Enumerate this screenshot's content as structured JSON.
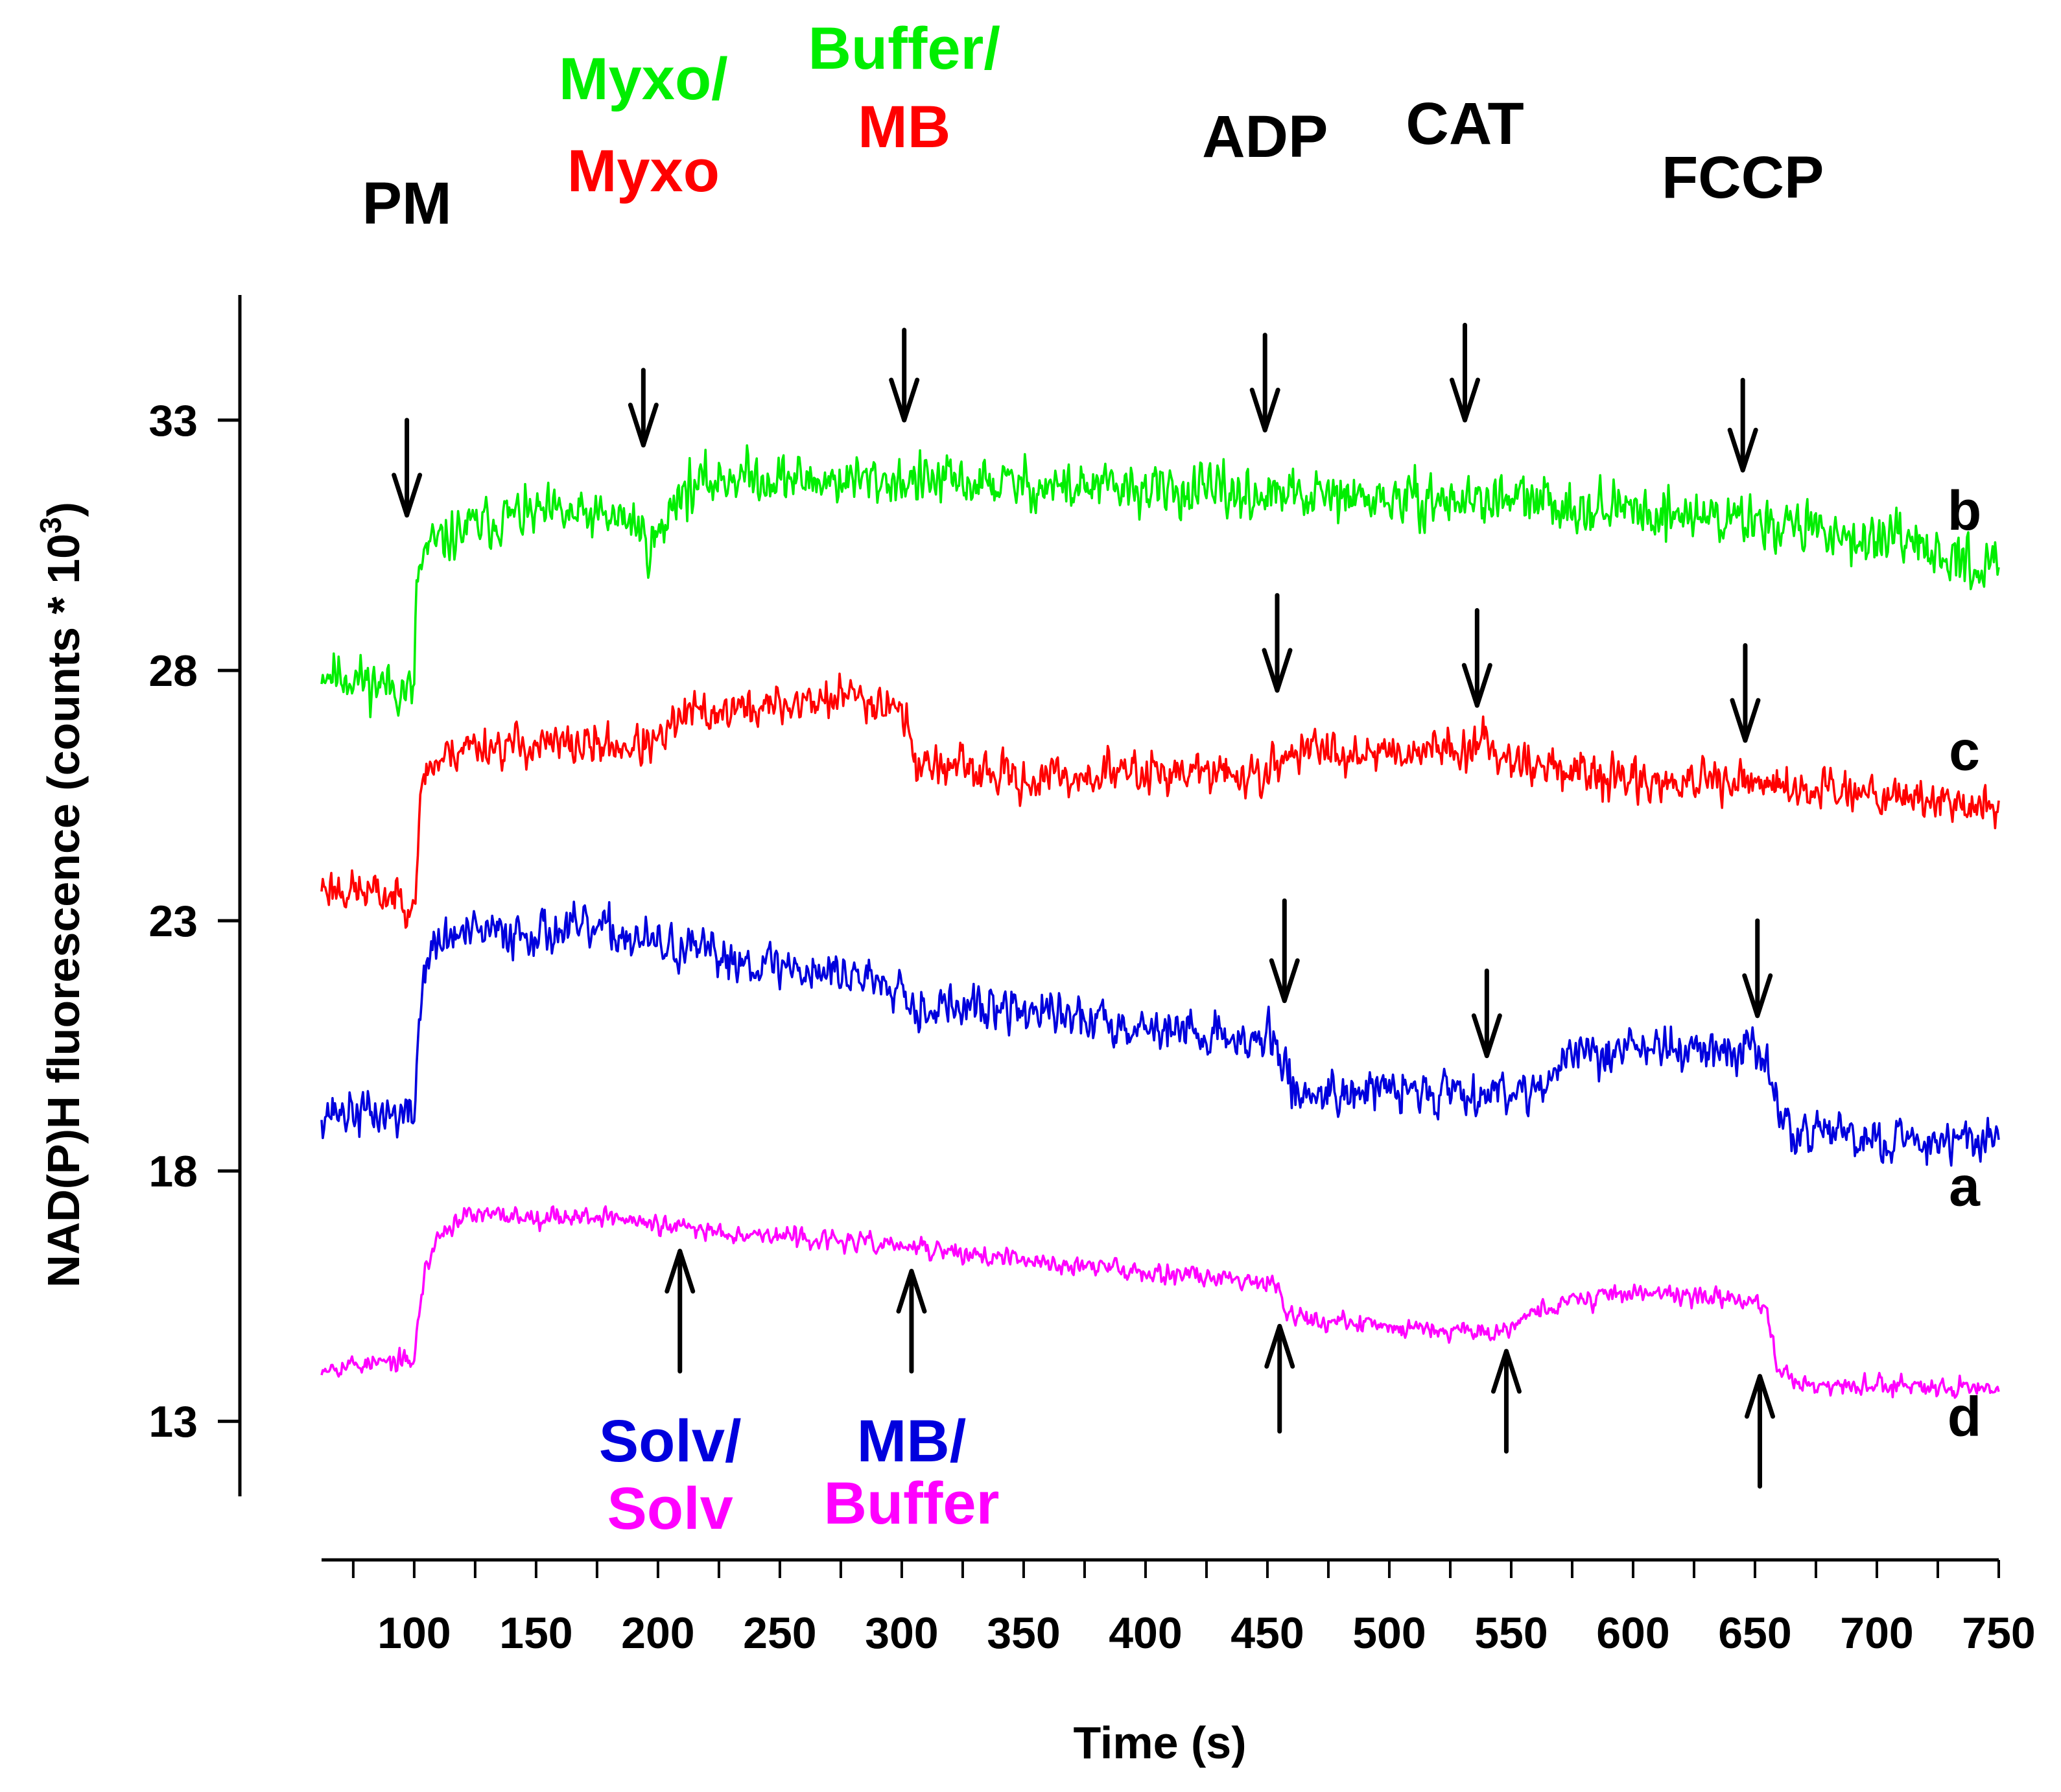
{
  "chart_data": {
    "type": "line",
    "xlabel": "Time (s)",
    "ylabel": "NAD(P)H fluorescence (counts * 10",
    "ylabel_superscript": "3",
    "ylabel_suffix": ")",
    "xlim": [
      62,
      750
    ],
    "ylim": [
      11.5,
      35.5
    ],
    "x_ticks": [
      100,
      150,
      200,
      250,
      300,
      350,
      400,
      450,
      500,
      550,
      600,
      650,
      700,
      750
    ],
    "y_ticks": [
      13,
      18,
      23,
      28,
      33
    ],
    "series": [
      {
        "name": "b",
        "color": "#00ee00",
        "noise": 0.33,
        "seed": 11,
        "points": [
          [
            62,
            28.0
          ],
          [
            98,
            27.6
          ],
          [
            100,
            27.5
          ],
          [
            101,
            29.8
          ],
          [
            105,
            30.4
          ],
          [
            120,
            30.8
          ],
          [
            140,
            31.1
          ],
          [
            160,
            31.1
          ],
          [
            190,
            31.0
          ],
          [
            196,
            30.5
          ],
          [
            203,
            30.8
          ],
          [
            206,
            31.5
          ],
          [
            230,
            31.9
          ],
          [
            260,
            31.8
          ],
          [
            300,
            31.8
          ],
          [
            350,
            31.7
          ],
          [
            400,
            31.6
          ],
          [
            450,
            31.5
          ],
          [
            500,
            31.4
          ],
          [
            550,
            31.4
          ],
          [
            600,
            31.2
          ],
          [
            650,
            31.0
          ],
          [
            700,
            30.6
          ],
          [
            750,
            30.0
          ]
        ]
      },
      {
        "name": "c",
        "color": "#ff0000",
        "noise": 0.28,
        "seed": 23,
        "points": [
          [
            62,
            23.7
          ],
          [
            100,
            23.4
          ],
          [
            102,
            24.8
          ],
          [
            104,
            26.0
          ],
          [
            120,
            26.5
          ],
          [
            150,
            26.5
          ],
          [
            200,
            26.5
          ],
          [
            210,
            27.1
          ],
          [
            250,
            27.3
          ],
          [
            280,
            27.5
          ],
          [
            300,
            27.3
          ],
          [
            305,
            26.2
          ],
          [
            350,
            25.8
          ],
          [
            400,
            26.0
          ],
          [
            450,
            25.9
          ],
          [
            460,
            26.4
          ],
          [
            500,
            26.4
          ],
          [
            540,
            26.5
          ],
          [
            560,
            26.1
          ],
          [
            600,
            25.8
          ],
          [
            650,
            25.7
          ],
          [
            700,
            25.6
          ],
          [
            750,
            25.2
          ]
        ]
      },
      {
        "name": "a",
        "color": "#0000dd",
        "noise": 0.3,
        "seed": 37,
        "points": [
          [
            62,
            19.2
          ],
          [
            100,
            19.1
          ],
          [
            102,
            21.0
          ],
          [
            105,
            22.3
          ],
          [
            115,
            22.7
          ],
          [
            150,
            22.8
          ],
          [
            180,
            22.8
          ],
          [
            200,
            22.5
          ],
          [
            250,
            22.1
          ],
          [
            300,
            21.8
          ],
          [
            304,
            21.3
          ],
          [
            350,
            21.2
          ],
          [
            400,
            20.9
          ],
          [
            450,
            20.6
          ],
          [
            455,
            20.4
          ],
          [
            462,
            19.5
          ],
          [
            475,
            19.6
          ],
          [
            500,
            19.6
          ],
          [
            550,
            19.6
          ],
          [
            565,
            19.8
          ],
          [
            575,
            20.3
          ],
          [
            600,
            20.5
          ],
          [
            625,
            20.4
          ],
          [
            650,
            20.4
          ],
          [
            655,
            20.3
          ],
          [
            660,
            18.9
          ],
          [
            700,
            18.6
          ],
          [
            750,
            18.7
          ]
        ]
      },
      {
        "name": "d",
        "color": "#ff00ff",
        "noise": 0.13,
        "seed": 53,
        "points": [
          [
            62,
            14.1
          ],
          [
            100,
            14.2
          ],
          [
            102,
            15.2
          ],
          [
            105,
            16.1
          ],
          [
            110,
            16.7
          ],
          [
            120,
            17.1
          ],
          [
            150,
            17.1
          ],
          [
            180,
            17.1
          ],
          [
            200,
            16.9
          ],
          [
            250,
            16.7
          ],
          [
            300,
            16.5
          ],
          [
            350,
            16.2
          ],
          [
            400,
            16.0
          ],
          [
            450,
            15.8
          ],
          [
            455,
            15.7
          ],
          [
            458,
            15.2
          ],
          [
            470,
            15.0
          ],
          [
            500,
            14.9
          ],
          [
            545,
            14.8
          ],
          [
            560,
            15.2
          ],
          [
            575,
            15.4
          ],
          [
            600,
            15.6
          ],
          [
            625,
            15.5
          ],
          [
            650,
            15.4
          ],
          [
            655,
            15.3
          ],
          [
            659,
            14.0
          ],
          [
            670,
            13.7
          ],
          [
            750,
            13.7
          ]
        ]
      }
    ],
    "trace_labels": [
      {
        "text": "b",
        "series": "b"
      },
      {
        "text": "c",
        "series": "c"
      },
      {
        "text": "a",
        "series": "a"
      },
      {
        "text": "d",
        "series": "d"
      }
    ],
    "annotations_top": [
      {
        "x": 97,
        "lines": [
          {
            "text": "PM",
            "color": "#000000"
          }
        ]
      },
      {
        "x": 194,
        "lines": [
          {
            "text": "Myxo/",
            "color": "#00ee00"
          },
          {
            "text": "Myxo",
            "color": "#ff0000"
          }
        ]
      },
      {
        "x": 301,
        "lines": [
          {
            "text": "Buffer/",
            "color": "#00ee00"
          },
          {
            "text": "MB",
            "color": "#ff0000"
          }
        ]
      },
      {
        "x": 449,
        "lines": [
          {
            "text": "ADP",
            "color": "#000000"
          }
        ]
      },
      {
        "x": 531,
        "lines": [
          {
            "text": "CAT",
            "color": "#000000"
          }
        ]
      },
      {
        "x": 645,
        "lines": [
          {
            "text": "FCCP",
            "color": "#000000"
          }
        ]
      }
    ],
    "annotations_bottom": [
      {
        "x": 205,
        "lines": [
          {
            "text": "Solv/",
            "color": "#0000dd"
          },
          {
            "text": "Solv",
            "color": "#ff00ff"
          }
        ]
      },
      {
        "x": 304,
        "lines": [
          {
            "text": "MB/",
            "color": "#0000dd"
          },
          {
            "text": "Buffer",
            "color": "#ff00ff"
          }
        ]
      }
    ],
    "arrows": [
      {
        "x": 97,
        "dir": "down",
        "y_from": 33.0,
        "y_to": 31.1,
        "trace": "b"
      },
      {
        "x": 194,
        "dir": "down",
        "y_from": 34.0,
        "y_to": 32.5,
        "trace": "b"
      },
      {
        "x": 301,
        "dir": "down",
        "y_from": 34.8,
        "y_to": 33.0,
        "trace": "b"
      },
      {
        "x": 449,
        "dir": "down",
        "y_from": 34.7,
        "y_to": 32.8,
        "trace": "b"
      },
      {
        "x": 531,
        "dir": "down",
        "y_from": 34.9,
        "y_to": 33.0,
        "trace": "b"
      },
      {
        "x": 645,
        "dir": "down",
        "y_from": 33.8,
        "y_to": 32.0,
        "trace": "b"
      },
      {
        "x": 454,
        "dir": "down",
        "y_from": 29.5,
        "y_to": 27.6,
        "trace": "c"
      },
      {
        "x": 536,
        "dir": "down",
        "y_from": 29.2,
        "y_to": 27.3,
        "trace": "c"
      },
      {
        "x": 646,
        "dir": "down",
        "y_from": 28.5,
        "y_to": 26.6,
        "trace": "c"
      },
      {
        "x": 457,
        "dir": "down",
        "y_from": 23.4,
        "y_to": 21.4,
        "trace": "a"
      },
      {
        "x": 540,
        "dir": "down",
        "y_from": 22.0,
        "y_to": 20.3,
        "trace": "a"
      },
      {
        "x": 651,
        "dir": "down",
        "y_from": 23.0,
        "y_to": 21.1,
        "trace": "a"
      },
      {
        "x": 209,
        "dir": "up",
        "y_from": 14.0,
        "y_to": 16.4,
        "trace": "d"
      },
      {
        "x": 304,
        "dir": "up",
        "y_from": 14.0,
        "y_to": 16.0,
        "trace": "d"
      },
      {
        "x": 455,
        "dir": "up",
        "y_from": 12.8,
        "y_to": 14.9,
        "trace": "d"
      },
      {
        "x": 548,
        "dir": "up",
        "y_from": 12.4,
        "y_to": 14.4,
        "trace": "d"
      },
      {
        "x": 652,
        "dir": "up",
        "y_from": 11.7,
        "y_to": 13.9,
        "trace": "d"
      }
    ]
  }
}
